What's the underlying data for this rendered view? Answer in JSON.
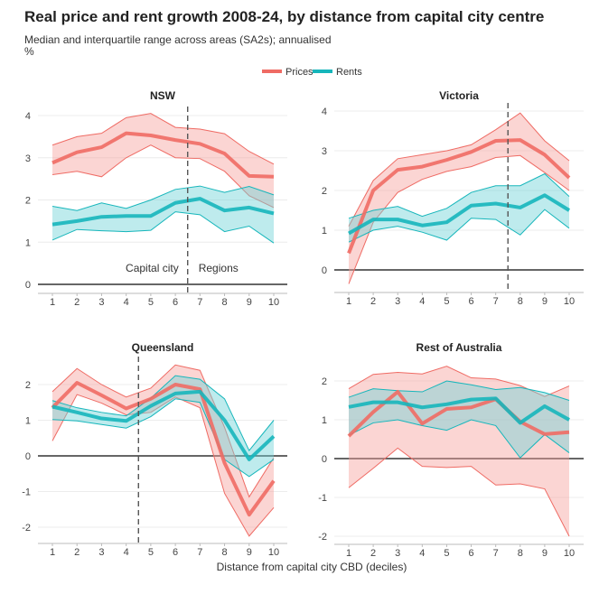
{
  "title": "Real price and rent growth 2008-24, by distance from capital city centre",
  "subtitle": "Median and interquartile range across areas (SA2s); annualised",
  "unit": "%",
  "colors": {
    "prices": "#ef6b64",
    "rents": "#16b6bb",
    "prices_fill": "#f6a29d",
    "rents_fill": "#6fd3d6"
  },
  "chart_data": {
    "type": "line",
    "xlabel": "Distance from capital city CBD (deciles)",
    "x": [
      1,
      2,
      3,
      4,
      5,
      6,
      7,
      8,
      9,
      10
    ],
    "legend": {
      "position": "top-right",
      "entries": [
        "Prices",
        "Rents"
      ]
    },
    "grid": true,
    "panels": [
      {
        "title": "NSW",
        "ylim": [
          -0.2,
          4.2
        ],
        "yticks": [
          0,
          1,
          2,
          3,
          4
        ],
        "divider_x": 6.5,
        "annotations": [
          "Capital city",
          "Regions"
        ],
        "series": [
          {
            "name": "Prices",
            "median": [
              2.88,
              3.13,
              3.25,
              3.58,
              3.53,
              3.42,
              3.33,
              3.1,
              2.57,
              2.55
            ],
            "p25": [
              2.6,
              2.68,
              2.55,
              3.0,
              3.3,
              3.0,
              2.98,
              2.68,
              2.1,
              1.82
            ],
            "p75": [
              3.3,
              3.5,
              3.58,
              3.95,
              4.05,
              3.72,
              3.68,
              3.57,
              3.15,
              2.85
            ]
          },
          {
            "name": "Rents",
            "median": [
              1.42,
              1.5,
              1.6,
              1.62,
              1.62,
              1.93,
              2.03,
              1.75,
              1.82,
              1.68
            ],
            "p25": [
              1.05,
              1.3,
              1.27,
              1.25,
              1.28,
              1.72,
              1.65,
              1.25,
              1.38,
              0.98
            ],
            "p75": [
              1.85,
              1.75,
              1.93,
              1.8,
              2.0,
              2.25,
              2.33,
              2.18,
              2.32,
              2.12
            ]
          }
        ]
      },
      {
        "title": "Victoria",
        "ylim": [
          -0.55,
          4.2
        ],
        "yticks": [
          0,
          1,
          2,
          3,
          4
        ],
        "divider_x": 7.5,
        "series": [
          {
            "name": "Prices",
            "median": [
              0.42,
              2.0,
              2.52,
              2.6,
              2.77,
              2.97,
              3.25,
              3.27,
              2.9,
              2.32
            ],
            "p25": [
              -0.35,
              1.2,
              1.95,
              2.28,
              2.48,
              2.6,
              2.83,
              2.88,
              2.45,
              2.0
            ],
            "p75": [
              1.1,
              2.25,
              2.8,
              2.9,
              3.0,
              3.15,
              3.53,
              3.95,
              3.25,
              2.75
            ]
          },
          {
            "name": "Rents",
            "median": [
              0.92,
              1.27,
              1.27,
              1.12,
              1.2,
              1.62,
              1.67,
              1.57,
              1.88,
              1.5
            ],
            "p25": [
              0.7,
              1.0,
              1.1,
              0.95,
              0.75,
              1.3,
              1.27,
              0.88,
              1.52,
              1.05
            ],
            "p75": [
              1.3,
              1.5,
              1.6,
              1.35,
              1.55,
              1.95,
              2.12,
              2.12,
              2.42,
              1.85
            ]
          }
        ]
      },
      {
        "title": "Queensland",
        "ylim": [
          -2.45,
          2.5
        ],
        "yticks": [
          -2,
          -1,
          0,
          1,
          2
        ],
        "divider_x": 4.5,
        "series": [
          {
            "name": "Prices",
            "median": [
              1.35,
              2.05,
              1.7,
              1.33,
              1.6,
              2.0,
              1.87,
              -0.2,
              -1.65,
              -0.7
            ],
            "p25": [
              0.42,
              1.72,
              1.48,
              1.15,
              1.22,
              1.65,
              1.35,
              -1.05,
              -2.25,
              -1.45
            ],
            "p75": [
              1.8,
              2.45,
              2.0,
              1.65,
              1.9,
              2.55,
              2.4,
              0.8,
              -1.15,
              -0.05
            ]
          },
          {
            "name": "Rents",
            "median": [
              1.38,
              1.22,
              1.05,
              0.98,
              1.4,
              1.75,
              1.8,
              1.0,
              -0.1,
              0.55
            ],
            "p25": [
              1.02,
              0.98,
              0.88,
              0.78,
              1.1,
              1.6,
              1.5,
              -0.1,
              -0.58,
              -0.1
            ],
            "p75": [
              1.55,
              1.35,
              1.22,
              1.12,
              1.62,
              2.25,
              2.15,
              1.6,
              0.15,
              1.0
            ]
          }
        ]
      },
      {
        "title": "Rest of Australia",
        "ylim": [
          -2.2,
          2.5
        ],
        "yticks": [
          -2,
          -1,
          0,
          1,
          2
        ],
        "series": [
          {
            "name": "Prices",
            "median": [
              0.58,
              1.2,
              1.72,
              0.9,
              1.28,
              1.32,
              1.53,
              0.95,
              0.63,
              0.68
            ],
            "p25": [
              -0.75,
              -0.25,
              0.27,
              -0.2,
              -0.23,
              -0.2,
              -0.68,
              -0.65,
              -0.78,
              -2.0
            ],
            "p75": [
              1.8,
              2.17,
              2.22,
              2.18,
              2.38,
              2.08,
              2.05,
              1.88,
              1.6,
              1.87
            ]
          },
          {
            "name": "Rents",
            "median": [
              1.33,
              1.45,
              1.45,
              1.32,
              1.4,
              1.52,
              1.55,
              0.92,
              1.35,
              1.0
            ],
            "p25": [
              0.6,
              0.92,
              1.0,
              0.85,
              0.73,
              1.0,
              0.85,
              0.02,
              0.62,
              0.15
            ],
            "p75": [
              1.58,
              1.8,
              1.75,
              1.72,
              2.0,
              1.9,
              1.78,
              1.83,
              1.7,
              1.5
            ]
          }
        ]
      }
    ]
  }
}
